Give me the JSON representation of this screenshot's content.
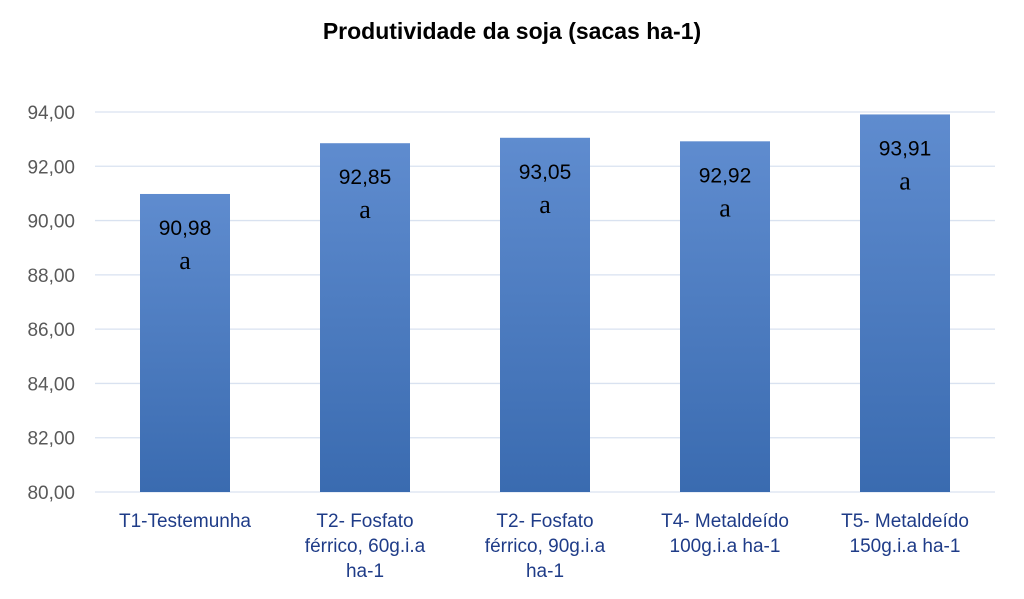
{
  "chart_data": {
    "type": "bar",
    "title": "Produtividade da soja (sacas ha-1)",
    "xlabel": "",
    "ylabel": "",
    "categories": [
      [
        "T1-Testemunha"
      ],
      [
        "T2- Fosfato",
        "férrico, 60g.i.a",
        "ha-1"
      ],
      [
        "T2- Fosfato",
        "férrico, 90g.i.a",
        "ha-1"
      ],
      [
        "T4- Metaldeído",
        "100g.i.a ha-1"
      ],
      [
        "T5- Metaldeído",
        "150g.i.a ha-1"
      ]
    ],
    "values": [
      90.98,
      92.85,
      93.05,
      92.92,
      93.91
    ],
    "value_labels": [
      "90,98",
      "92,85",
      "93,05",
      "92,92",
      "93,91"
    ],
    "letters": [
      "a",
      "a",
      "a",
      "a",
      "a"
    ],
    "ylim": [
      80,
      94
    ],
    "yticks": [
      80,
      82,
      84,
      86,
      88,
      90,
      92,
      94
    ],
    "ytick_labels": [
      "80,00",
      "82,00",
      "84,00",
      "86,00",
      "88,00",
      "90,00",
      "92,00",
      "94,00"
    ],
    "grid": true,
    "legend": "none",
    "colors": {
      "bar_top": "#5f8ccf",
      "bar_bottom": "#3a6bb0",
      "grid": "#d9e2f0",
      "axis_text": "#595959",
      "category_text": "#1f3c88"
    }
  }
}
